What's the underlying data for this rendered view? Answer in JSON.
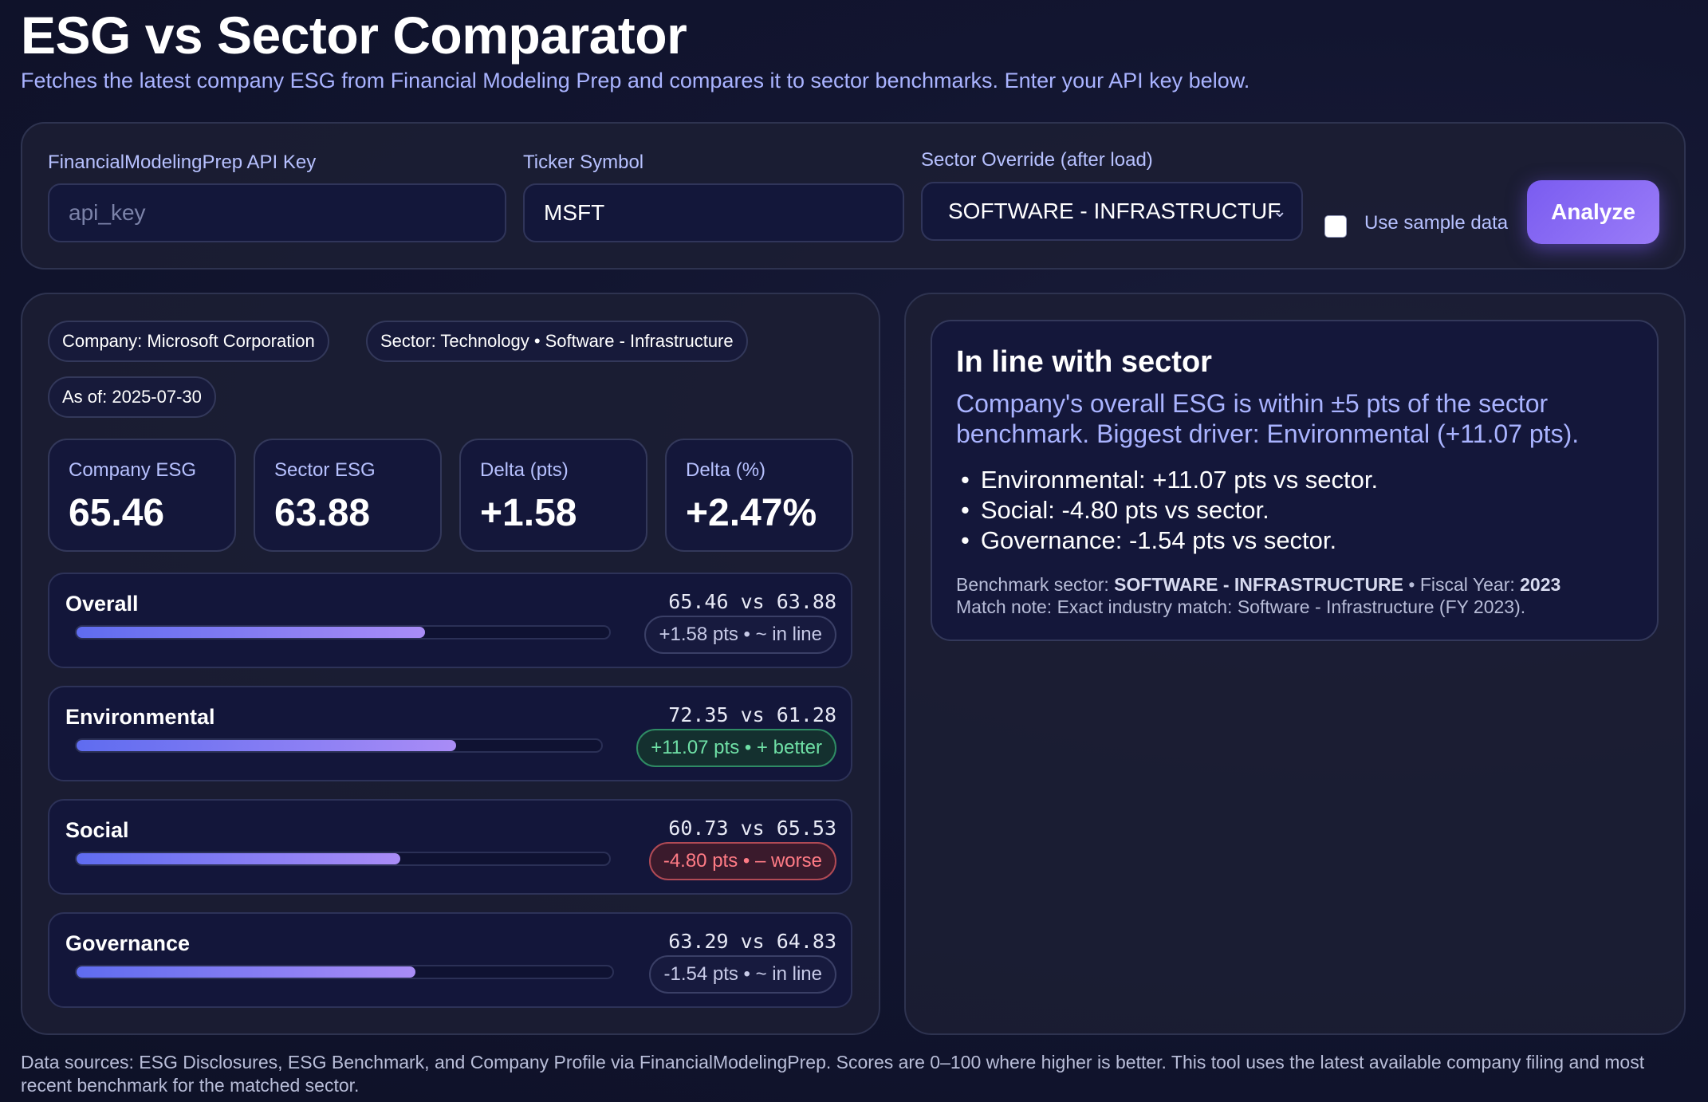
{
  "header": {
    "title": "ESG vs Sector Comparator",
    "subtitle": "Fetches the latest company ESG from Financial Modeling Prep and compares it to sector benchmarks. Enter your API key below."
  },
  "controls": {
    "api_key_label": "FinancialModelingPrep API Key",
    "api_key_placeholder": "api_key",
    "ticker_label": "Ticker Symbol",
    "ticker_value": "MSFT",
    "sector_label": "Sector Override (after load)",
    "sector_value": "SOFTWARE - INFRASTRUCTUF",
    "sample_label": "Use sample data",
    "sample_checked": false,
    "analyze_label": "Analyze"
  },
  "chips": {
    "company": "Company: Microsoft Corporation",
    "sector": "Sector: Technology • Software - Infrastructure",
    "as_of": "As of: 2025-07-30"
  },
  "stats": [
    {
      "label": "Company ESG",
      "value": "65.46"
    },
    {
      "label": "Sector ESG",
      "value": "63.88"
    },
    {
      "label": "Delta (pts)",
      "value": "+1.58"
    },
    {
      "label": "Delta (%)",
      "value": "+2.47%"
    }
  ],
  "metrics": [
    {
      "name": "Overall",
      "vs": "65.46 vs 63.88",
      "pill": "+1.58 pts • ~ in line",
      "status": "neutral",
      "progress": 0.6546
    },
    {
      "name": "Environmental",
      "vs": "72.35 vs 61.28",
      "pill": "+11.07 pts • + better",
      "status": "good",
      "progress": 0.7235
    },
    {
      "name": "Social",
      "vs": "60.73 vs 65.53",
      "pill": "-4.80 pts • – worse",
      "status": "bad",
      "progress": 0.6073
    },
    {
      "name": "Governance",
      "vs": "63.29 vs 64.83",
      "pill": "-1.54 pts • ~ in line",
      "status": "neutral",
      "progress": 0.6329
    }
  ],
  "summary": {
    "title": "In line with sector",
    "lead": "Company's overall ESG is within ±5 pts of the sector benchmark. Biggest driver: Environmental (+11.07 pts).",
    "bullets": [
      "Environmental: +11.07 pts vs sector.",
      "Social: -4.80 pts vs sector.",
      "Governance: -1.54 pts vs sector."
    ],
    "benchmark_label": "Benchmark sector: ",
    "benchmark_value": "SOFTWARE - INFRASTRUCTURE",
    "fiscal_label": " • Fiscal Year: ",
    "fiscal_value": "2023",
    "match_note": "Match note: Exact industry match: Software - Infrastructure (FY 2023)."
  },
  "footer": "Data sources: ESG Disclosures, ESG Benchmark, and Company Profile via FinancialModelingPrep. Scores are 0–100 where higher is better. This tool uses the latest available company filing and most recent benchmark for the matched sector.",
  "colors": {
    "accent": "#7a5cf0",
    "good": "#6fe0a6",
    "bad": "#ff7b85"
  }
}
